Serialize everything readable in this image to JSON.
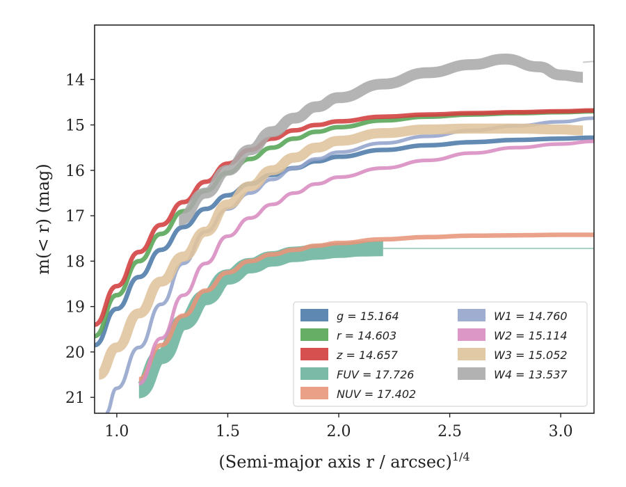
{
  "chart_data": {
    "type": "line",
    "title": "",
    "xlabel": "(Semi-major axis r / arcsec)",
    "xlabel_exponent": "1/4",
    "ylabel": "m(< r) (mag)",
    "xlim": [
      0.9,
      3.15
    ],
    "ylim": [
      21.35,
      12.8
    ],
    "y_inverted": true,
    "x_ticks": [
      1.0,
      1.5,
      2.0,
      2.5,
      3.0
    ],
    "x_tick_labels": [
      "1.0",
      "1.5",
      "2.0",
      "2.5",
      "3.0"
    ],
    "y_ticks": [
      14,
      15,
      16,
      17,
      18,
      19,
      20,
      21
    ],
    "y_tick_labels": [
      "14",
      "15",
      "16",
      "17",
      "18",
      "19",
      "20",
      "21"
    ],
    "grid": false,
    "legend_position": "lower-right",
    "series": [
      {
        "name": "g = 15.164",
        "color": "#4c7aa8",
        "band": 0.05,
        "x": [
          0.9,
          1.0,
          1.1,
          1.2,
          1.3,
          1.4,
          1.5,
          1.6,
          1.7,
          1.8,
          1.9,
          2.0,
          2.2,
          2.4,
          2.6,
          2.8,
          3.0,
          3.15
        ],
        "y": [
          19.85,
          19.05,
          18.35,
          17.75,
          17.25,
          16.85,
          16.55,
          16.3,
          16.1,
          15.95,
          15.8,
          15.7,
          15.55,
          15.45,
          15.38,
          15.33,
          15.3,
          15.28
        ]
      },
      {
        "name": "r = 14.603",
        "color": "#55a455",
        "band": 0.05,
        "x": [
          0.9,
          1.0,
          1.1,
          1.2,
          1.3,
          1.4,
          1.5,
          1.6,
          1.7,
          1.8,
          1.9,
          2.0,
          2.2,
          2.4,
          2.6,
          2.8,
          3.0,
          3.15
        ],
        "y": [
          19.65,
          18.75,
          18.0,
          17.4,
          16.9,
          16.45,
          16.05,
          15.75,
          15.5,
          15.3,
          15.15,
          15.05,
          14.9,
          14.82,
          14.77,
          14.74,
          14.72,
          14.7
        ]
      },
      {
        "name": "z = 14.657",
        "color": "#d13d3d",
        "band": 0.05,
        "x": [
          0.9,
          1.0,
          1.1,
          1.2,
          1.3,
          1.4,
          1.5,
          1.6,
          1.7,
          1.8,
          1.9,
          2.0,
          2.2,
          2.4,
          2.6,
          2.8,
          3.0,
          3.15
        ],
        "y": [
          19.4,
          18.55,
          17.8,
          17.2,
          16.7,
          16.25,
          15.85,
          15.55,
          15.3,
          15.12,
          15.0,
          14.92,
          14.82,
          14.77,
          14.74,
          14.72,
          14.7,
          14.68
        ]
      },
      {
        "name": "FUV = 17.726",
        "color": "#6bb39d",
        "band": 0.17,
        "x": [
          1.1,
          1.2,
          1.3,
          1.4,
          1.5,
          1.6,
          1.7,
          1.8,
          1.9,
          2.0,
          2.1,
          2.2
        ],
        "y": [
          20.85,
          20.1,
          19.35,
          18.8,
          18.35,
          18.1,
          17.95,
          17.85,
          17.8,
          17.76,
          17.73,
          17.72
        ]
      },
      {
        "name": "NUV = 17.402",
        "color": "#e8957a",
        "band": 0.05,
        "x": [
          1.1,
          1.2,
          1.3,
          1.4,
          1.5,
          1.6,
          1.7,
          1.8,
          1.9,
          2.0,
          2.2,
          2.4,
          2.6,
          2.8,
          3.0,
          3.15
        ],
        "y": [
          20.6,
          19.85,
          19.2,
          18.65,
          18.25,
          18.0,
          17.85,
          17.75,
          17.66,
          17.6,
          17.52,
          17.47,
          17.44,
          17.43,
          17.42,
          17.42
        ]
      },
      {
        "name": "W1 = 14.760",
        "color": "#93a4cb",
        "band": 0.04,
        "x": [
          0.95,
          1.0,
          1.1,
          1.2,
          1.3,
          1.4,
          1.5,
          1.6,
          1.7,
          1.8,
          1.9,
          2.0,
          2.2,
          2.4,
          2.6,
          2.8,
          3.0,
          3.15
        ],
        "y": [
          21.35,
          20.8,
          19.9,
          18.95,
          18.05,
          17.35,
          16.85,
          16.5,
          16.2,
          15.95,
          15.75,
          15.6,
          15.4,
          15.25,
          15.12,
          15.02,
          14.93,
          14.85
        ]
      },
      {
        "name": "W2 = 15.114",
        "color": "#d88cc0",
        "band": 0.04,
        "x": [
          1.1,
          1.2,
          1.3,
          1.4,
          1.5,
          1.6,
          1.7,
          1.8,
          1.9,
          2.0,
          2.2,
          2.4,
          2.6,
          2.8,
          3.0,
          3.15
        ],
        "y": [
          20.7,
          19.7,
          18.75,
          18.05,
          17.45,
          17.05,
          16.75,
          16.5,
          16.3,
          16.15,
          15.95,
          15.78,
          15.62,
          15.5,
          15.42,
          15.36
        ]
      },
      {
        "name": "W3 = 15.052",
        "color": "#dfc39c",
        "band": 0.11,
        "x": [
          0.92,
          1.0,
          1.1,
          1.2,
          1.3,
          1.4,
          1.5,
          1.6,
          1.7,
          1.8,
          1.9,
          2.0,
          2.2,
          2.4,
          2.6,
          2.8,
          3.0,
          3.1
        ],
        "y": [
          20.5,
          19.9,
          19.15,
          18.45,
          17.9,
          17.35,
          16.75,
          16.35,
          16.0,
          15.72,
          15.5,
          15.35,
          15.18,
          15.1,
          15.08,
          15.08,
          15.1,
          15.12
        ]
      },
      {
        "name": "W4 = 13.537",
        "color": "#aaaaaa",
        "band": 0.12,
        "x": [
          1.28,
          1.4,
          1.5,
          1.6,
          1.7,
          1.8,
          1.9,
          2.0,
          2.2,
          2.4,
          2.6,
          2.75,
          2.9,
          3.0,
          3.1
        ],
        "y": [
          17.1,
          16.5,
          16.0,
          15.55,
          15.15,
          14.85,
          14.6,
          14.4,
          14.1,
          13.85,
          13.67,
          13.55,
          13.72,
          13.9,
          13.95
        ]
      }
    ]
  },
  "legend": {
    "items": [
      {
        "label": "g = 15.164",
        "color": "#4c7aa8"
      },
      {
        "label": "r = 14.603",
        "color": "#55a455"
      },
      {
        "label": "z = 14.657",
        "color": "#d13d3d"
      },
      {
        "label": "FUV = 17.726",
        "color": "#6bb39d"
      },
      {
        "label": "NUV = 17.402",
        "color": "#e8957a"
      },
      {
        "label": "W1 = 14.760",
        "color": "#93a4cb"
      },
      {
        "label": "W2 = 15.114",
        "color": "#d88cc0"
      },
      {
        "label": "W3 = 15.052",
        "color": "#dfc39c"
      },
      {
        "label": "W4 = 13.537",
        "color": "#aaaaaa"
      }
    ]
  }
}
